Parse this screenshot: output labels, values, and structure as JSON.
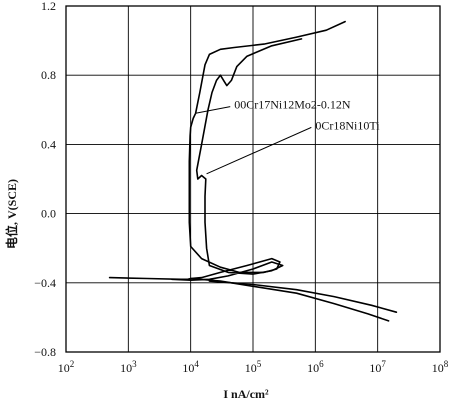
{
  "chart_data": {
    "type": "line",
    "xlabel": "I  nA/cm²",
    "ylabel": "电位, V(SCE)",
    "x_scale": "log",
    "xlim": [
      100,
      100000000
    ],
    "ylim": [
      -0.8,
      1.2
    ],
    "x_ticks": [
      {
        "value": 100,
        "base": "10",
        "exp": "2"
      },
      {
        "value": 1000,
        "base": "10",
        "exp": "3"
      },
      {
        "value": 10000,
        "base": "10",
        "exp": "4"
      },
      {
        "value": 100000,
        "base": "10",
        "exp": "5"
      },
      {
        "value": 1000000,
        "base": "10",
        "exp": "6"
      },
      {
        "value": 10000000,
        "base": "10",
        "exp": "7"
      },
      {
        "value": 100000000,
        "base": "10",
        "exp": "8"
      }
    ],
    "y_ticks": [
      {
        "value": -0.8,
        "label": "−0.8"
      },
      {
        "value": -0.4,
        "label": "−0.4"
      },
      {
        "value": 0.0,
        "label": "0.0"
      },
      {
        "value": 0.4,
        "label": "0.4"
      },
      {
        "value": 0.8,
        "label": "0.8"
      },
      {
        "value": 1.2,
        "label": "1.2"
      }
    ],
    "grid": true,
    "series": [
      {
        "name": "00Cr17Ni12Mo2-0.12N",
        "points": [
          [
            500,
            -0.37
          ],
          [
            2000,
            -0.375
          ],
          [
            7000,
            -0.38
          ],
          [
            9000,
            -0.38
          ],
          [
            10000,
            -0.375
          ],
          [
            15000,
            -0.37
          ],
          [
            30000,
            -0.34
          ],
          [
            80000,
            -0.3
          ],
          [
            200000,
            -0.26
          ],
          [
            270000,
            -0.28
          ],
          [
            240000,
            -0.32
          ],
          [
            150000,
            -0.34
          ],
          [
            60000,
            -0.34
          ],
          [
            30000,
            -0.31
          ],
          [
            15000,
            -0.26
          ],
          [
            10000,
            -0.19
          ],
          [
            9500,
            -0.05
          ],
          [
            9500,
            0.1
          ],
          [
            9500,
            0.3
          ],
          [
            9800,
            0.45
          ],
          [
            10000,
            0.5
          ],
          [
            11000,
            0.55
          ],
          [
            12000,
            0.58
          ],
          [
            14000,
            0.7
          ],
          [
            17000,
            0.86
          ],
          [
            20000,
            0.92
          ],
          [
            30000,
            0.95
          ],
          [
            50000,
            0.96
          ],
          [
            150000,
            0.98
          ],
          [
            500000,
            1.02
          ],
          [
            1500000,
            1.06
          ],
          [
            3000000,
            1.11
          ]
        ]
      },
      {
        "name": "0Cr18Ni10Ti",
        "points": [
          [
            10000,
            -0.375
          ],
          [
            30000,
            -0.39
          ],
          [
            100000,
            -0.42
          ],
          [
            500000,
            -0.46
          ],
          [
            2000000,
            -0.52
          ],
          [
            7000000,
            -0.58
          ],
          [
            15000000,
            -0.62
          ]
        ]
      },
      {
        "name": "",
        "points": [
          [
            5000,
            -0.38
          ],
          [
            10000,
            -0.385
          ],
          [
            20000,
            -0.38
          ],
          [
            40000,
            -0.36
          ],
          [
            100000,
            -0.32
          ],
          [
            200000,
            -0.28
          ],
          [
            300000,
            -0.3
          ],
          [
            200000,
            -0.33
          ],
          [
            100000,
            -0.35
          ],
          [
            40000,
            -0.34
          ],
          [
            20000,
            -0.3
          ],
          [
            18000,
            -0.2
          ],
          [
            17000,
            -0.05
          ],
          [
            17000,
            0.1
          ],
          [
            17500,
            0.2
          ],
          [
            15000,
            0.22
          ],
          [
            13000,
            0.2
          ],
          [
            12500,
            0.25
          ],
          [
            15000,
            0.4
          ],
          [
            19000,
            0.6
          ],
          [
            22000,
            0.7
          ],
          [
            26000,
            0.77
          ],
          [
            30000,
            0.8
          ],
          [
            35000,
            0.76
          ],
          [
            38000,
            0.74
          ],
          [
            45000,
            0.77
          ],
          [
            55000,
            0.85
          ],
          [
            80000,
            0.91
          ],
          [
            200000,
            0.97
          ],
          [
            600000,
            1.01
          ]
        ]
      },
      {
        "name": "",
        "points": [
          [
            20000,
            -0.39
          ],
          [
            100000,
            -0.41
          ],
          [
            500000,
            -0.44
          ],
          [
            2000000,
            -0.48
          ],
          [
            8000000,
            -0.53
          ],
          [
            20000000,
            -0.57
          ]
        ]
      }
    ],
    "annotations": [
      {
        "text": "00Cr17Ni12Mo2-0.12N",
        "x": 50000,
        "y": 0.63,
        "arrow_to": [
          12000,
          0.58
        ]
      },
      {
        "text": "0Cr18Ni10Ti",
        "x": 1000000,
        "y": 0.51,
        "arrow_to": [
          18000,
          0.23
        ]
      }
    ]
  }
}
